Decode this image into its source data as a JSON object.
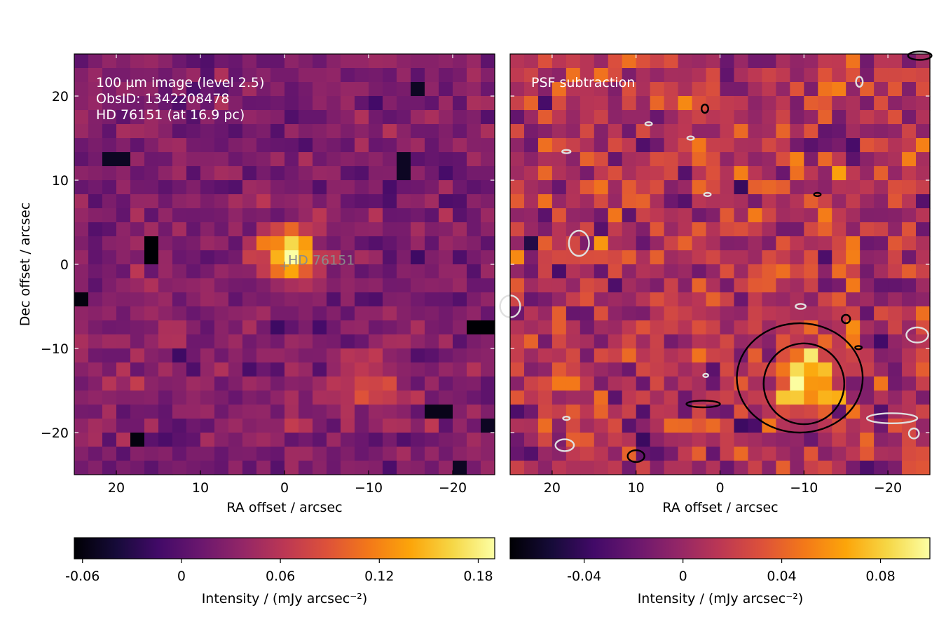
{
  "chart_data": [
    {
      "type": "heatmap",
      "title": "",
      "annotation_lines": [
        "100 µm image (level 2.5)",
        "ObsID: 1342208478",
        "HD 76151 (at 16.9 pc)"
      ],
      "xlabel": "RA offset / arcsec",
      "ylabel": "Dec offset / arcsec",
      "xlim": [
        25,
        -25
      ],
      "ylim": [
        -25,
        25
      ],
      "xticks": [
        20,
        10,
        0,
        -10,
        -20
      ],
      "xtick_labels": [
        "20",
        "10",
        "0",
        "−10",
        "−20"
      ],
      "yticks": [
        20,
        10,
        0,
        -10,
        -20
      ],
      "ytick_labels": [
        "20",
        "10",
        "0",
        "−10",
        "−20"
      ],
      "pixel_size_arcsec": 1.667,
      "colormap": "inferno",
      "vmin": -0.065,
      "vmax": 0.19,
      "background_level": 0.025,
      "noise_sigma": 0.016,
      "sources": [
        {
          "name": "HD 76151",
          "ra": -0.8,
          "dec": 1.0,
          "peak": 0.19,
          "sigma": 2.2
        },
        {
          "name": "",
          "ra": -10.0,
          "dec": -14.0,
          "peak": 0.095,
          "sigma": 2.2
        }
      ],
      "dark_pixels": [
        {
          "ra": 16.0,
          "dec": 3.0,
          "value": -0.065
        },
        {
          "ra": 16.0,
          "dec": 1.5,
          "value": -0.065
        },
        {
          "ra": 24.0,
          "dec": -4.5,
          "value": -0.06
        },
        {
          "ra": -22.5,
          "dec": -7.5,
          "value": -0.065
        },
        {
          "ra": -24.0,
          "dec": -7.5,
          "value": -0.065
        },
        {
          "ra": 18.0,
          "dec": -20.5,
          "value": -0.06
        },
        {
          "ra": -18.5,
          "dec": -17.5,
          "value": -0.055
        },
        {
          "ra": -16.0,
          "dec": 21.0,
          "value": -0.05
        },
        {
          "ra": -20.5,
          "dec": -24.0,
          "value": -0.05
        },
        {
          "ra": -24.0,
          "dec": -19.0,
          "value": -0.05
        },
        {
          "ra": -14.0,
          "dec": 11.5,
          "value": -0.05
        },
        {
          "ra": 20.0,
          "dec": 13.0,
          "value": -0.05
        }
      ],
      "target": {
        "label": "HD 76151",
        "ra": 0.0,
        "dec": -0.2
      },
      "colorbar": {
        "label": "Intensity / (mJy arcsec⁻²)",
        "ticks": [
          -0.06,
          0,
          0.06,
          0.12,
          0.18
        ],
        "tick_labels": [
          "-0.06",
          "0",
          "0.06",
          "0.12",
          "0.18"
        ]
      }
    },
    {
      "type": "heatmap",
      "title": "",
      "annotation_lines": [
        "PSF subtraction"
      ],
      "xlabel": "RA offset / arcsec",
      "ylabel": "",
      "xlim": [
        25,
        -25
      ],
      "ylim": [
        -25,
        25
      ],
      "xticks": [
        20,
        10,
        0,
        -10,
        -20
      ],
      "xtick_labels": [
        "20",
        "10",
        "0",
        "−10",
        "−20"
      ],
      "yticks": [
        20,
        10,
        0,
        -10,
        -20
      ],
      "pixel_size_arcsec": 1.667,
      "colormap": "inferno",
      "vmin": -0.07,
      "vmax": 0.1,
      "background_level": 0.01,
      "noise_sigma": 0.02,
      "sources": [
        {
          "name": "",
          "ra": -10.0,
          "dec": -14.0,
          "peak": 0.1,
          "sigma": 2.2
        }
      ],
      "contours": {
        "positive_color": "#000000",
        "negative_color": "#e0e0e0",
        "positive_rings": [
          {
            "ra": -9.5,
            "dec": -13.5,
            "rx": 7.5,
            "ry": 6.5
          },
          {
            "ra": -10.0,
            "dec": -14.2,
            "rx": 4.8,
            "ry": 4.8
          },
          {
            "ra": 2.0,
            "dec": -16.6,
            "rx": 2.0,
            "ry": 0.4
          },
          {
            "ra": 10.0,
            "dec": -22.8,
            "rx": 1.0,
            "ry": 0.7
          },
          {
            "ra": 1.8,
            "dec": 18.5,
            "rx": 0.4,
            "ry": 0.5
          },
          {
            "ra": -15.0,
            "dec": -6.5,
            "rx": 0.5,
            "ry": 0.5
          },
          {
            "ra": -11.6,
            "dec": 8.3,
            "rx": 0.4,
            "ry": 0.2
          },
          {
            "ra": -16.5,
            "dec": -9.9,
            "rx": 0.4,
            "ry": 0.2
          },
          {
            "ra": -23.8,
            "dec": 24.8,
            "rx": 1.4,
            "ry": 0.5
          }
        ],
        "negative_rings": [
          {
            "ra": 16.8,
            "dec": 2.5,
            "rx": 1.2,
            "ry": 1.5
          },
          {
            "ra": 25.0,
            "dec": -5.0,
            "rx": 1.2,
            "ry": 1.3
          },
          {
            "ra": -23.5,
            "dec": -8.4,
            "rx": 1.3,
            "ry": 0.9
          },
          {
            "ra": -20.5,
            "dec": -18.3,
            "rx": 3.0,
            "ry": 0.6
          },
          {
            "ra": 18.5,
            "dec": -21.5,
            "rx": 1.1,
            "ry": 0.7
          },
          {
            "ra": -23.1,
            "dec": -20.1,
            "rx": 0.6,
            "ry": 0.6
          },
          {
            "ra": -16.6,
            "dec": 21.7,
            "rx": 0.4,
            "ry": 0.6
          },
          {
            "ra": 8.5,
            "dec": 16.7,
            "rx": 0.4,
            "ry": 0.2
          },
          {
            "ra": 3.5,
            "dec": 15.0,
            "rx": 0.4,
            "ry": 0.2
          },
          {
            "ra": 18.3,
            "dec": 13.4,
            "rx": 0.5,
            "ry": 0.2
          },
          {
            "ra": 1.5,
            "dec": 8.3,
            "rx": 0.4,
            "ry": 0.2
          },
          {
            "ra": -9.6,
            "dec": -5.0,
            "rx": 0.6,
            "ry": 0.3
          },
          {
            "ra": 1.7,
            "dec": -13.2,
            "rx": 0.3,
            "ry": 0.2
          },
          {
            "ra": 18.3,
            "dec": -18.3,
            "rx": 0.4,
            "ry": 0.2
          }
        ]
      },
      "colorbar": {
        "label": "Intensity / (mJy arcsec⁻²)",
        "ticks": [
          -0.04,
          0,
          0.04,
          0.08
        ],
        "tick_labels": [
          "-0.04",
          "0",
          "0.04",
          "0.08"
        ]
      }
    }
  ]
}
